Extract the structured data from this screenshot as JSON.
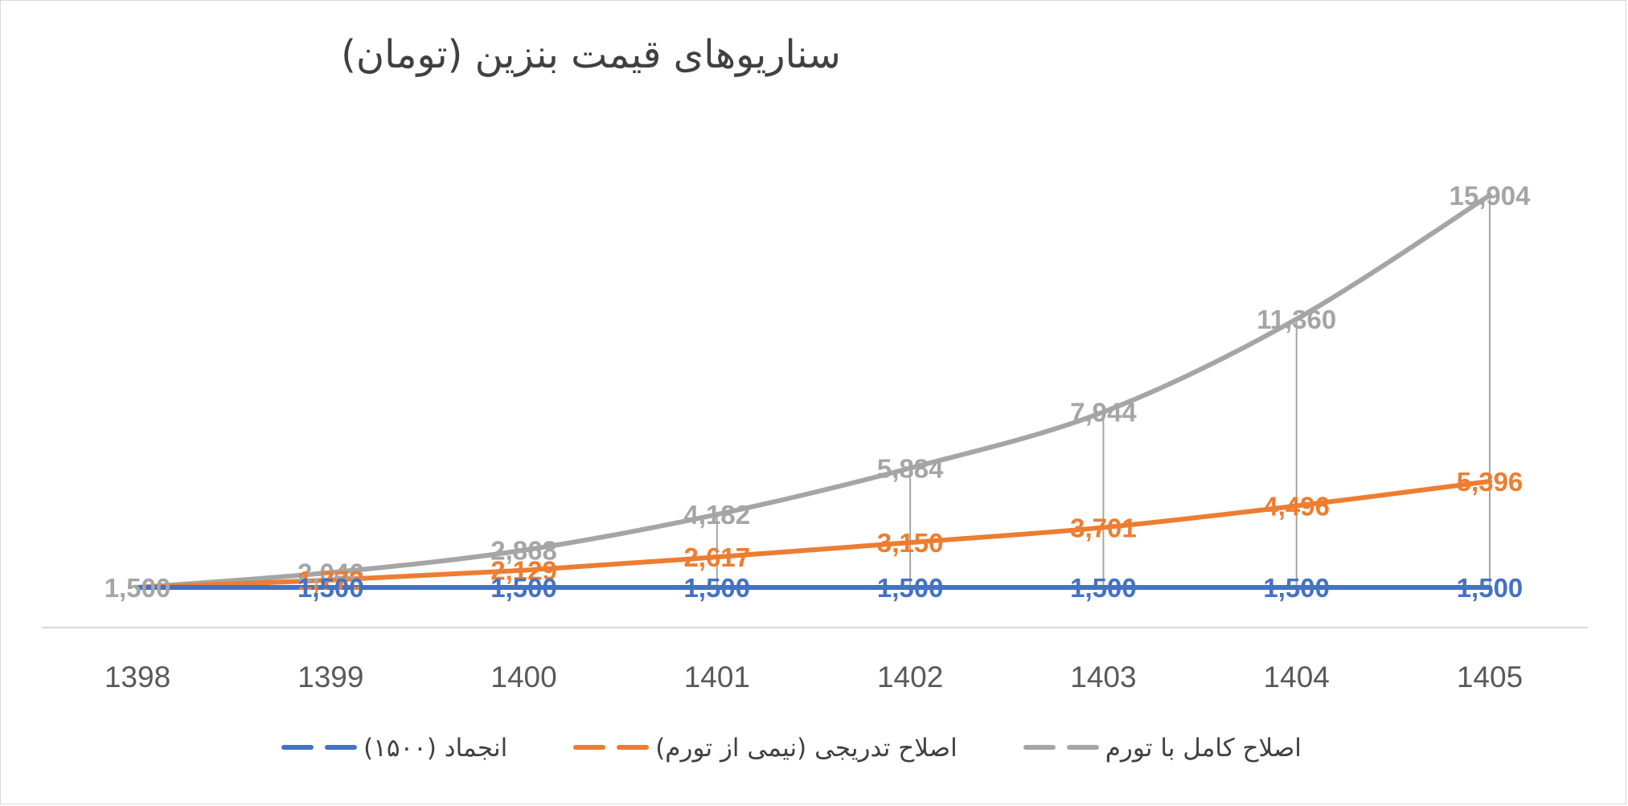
{
  "chart_data": {
    "type": "line",
    "title": "سناریوهای قیمت بنزین (تومان)",
    "categories": [
      "1398",
      "1399",
      "1400",
      "1401",
      "1402",
      "1403",
      "1404",
      "1405"
    ],
    "ylim": [
      0,
      18000
    ],
    "grid": false,
    "legend_position": "bottom",
    "data_labels": true,
    "series": [
      {
        "name": "انجماد (۱۵۰۰)",
        "color": "#4472c4",
        "values": [
          1500,
          1500,
          1500,
          1500,
          1500,
          1500,
          1500,
          1500
        ],
        "labels": [
          "",
          "1,500",
          "1,500",
          "1,500",
          "1,500",
          "1,500",
          "1,500",
          "1,500"
        ]
      },
      {
        "name": "اصلاح تدریجی (نیمی از تورم)",
        "color": "#ed7d31",
        "values": [
          1500,
          1773,
          2129,
          2617,
          3150,
          3701,
          4496,
          5396
        ],
        "labels": [
          "",
          "1,773",
          "2,129",
          "2,617",
          "3,150",
          "3,701",
          "4,496",
          "5,396"
        ]
      },
      {
        "name": "اصلاح کامل با تورم",
        "color": "#a5a5a5",
        "values": [
          1500,
          2046,
          2868,
          4182,
          5884,
          7944,
          11360,
          15904
        ],
        "labels": [
          "1,500",
          "2,046",
          "2,868",
          "4,182",
          "5,884",
          "7,944",
          "11,360",
          "15,904"
        ]
      }
    ]
  }
}
